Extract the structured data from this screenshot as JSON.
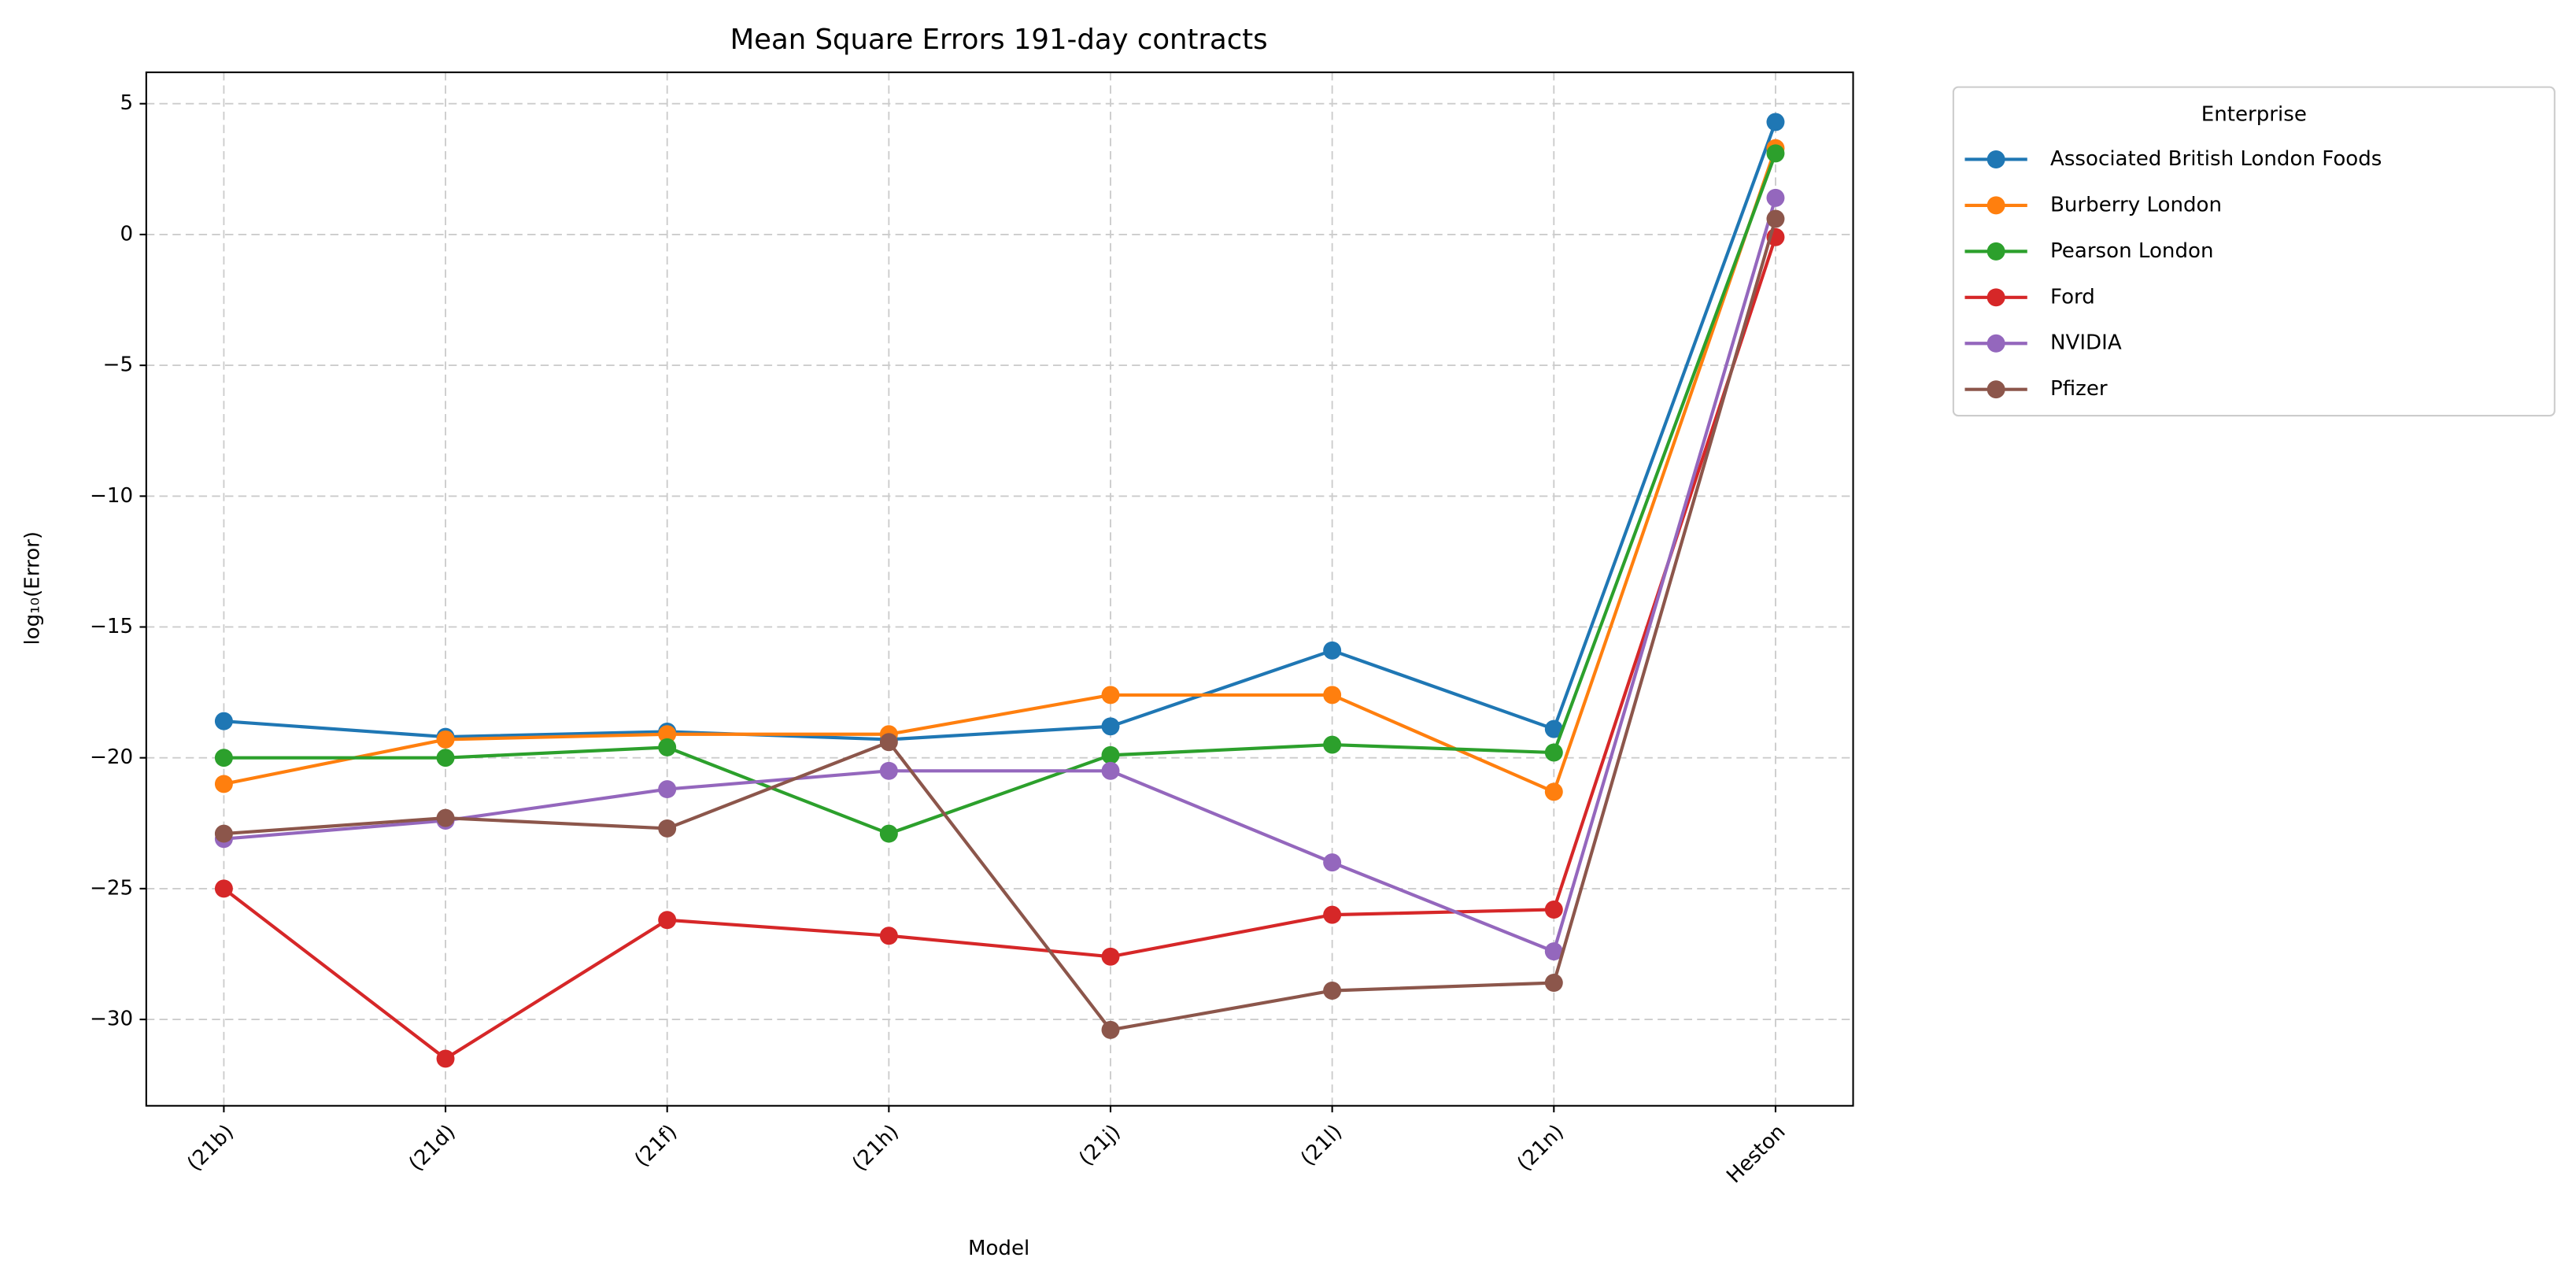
{
  "chart_data": {
    "type": "line",
    "title": "Mean Square Errors 191-day contracts",
    "x_label": "Model",
    "y_label": "log₁₀(Error)",
    "categories": [
      "(21b)",
      "(21d)",
      "(21f)",
      "(21h)",
      "(21j)",
      "(21l)",
      "(21n)",
      "Heston"
    ],
    "series": [
      {
        "name": "Associated British London Foods",
        "color": "#1f77b4",
        "values": [
          -18.6,
          -19.2,
          -19.0,
          -19.3,
          -18.8,
          -15.9,
          -18.9,
          4.3
        ]
      },
      {
        "name": "Burberry London",
        "color": "#ff7f0e",
        "values": [
          -21.0,
          -19.3,
          -19.1,
          -19.1,
          -17.6,
          -17.6,
          -21.3,
          3.3
        ]
      },
      {
        "name": "Pearson London",
        "color": "#2ca02c",
        "values": [
          -20.0,
          -20.0,
          -19.6,
          -22.9,
          -19.9,
          -19.5,
          -19.8,
          3.1
        ]
      },
      {
        "name": "Ford",
        "color": "#d62728",
        "values": [
          -25.0,
          -31.5,
          -26.2,
          -26.8,
          -27.6,
          -26.0,
          -25.8,
          -0.1
        ]
      },
      {
        "name": "NVIDIA",
        "color": "#9467bd",
        "values": [
          -23.1,
          -22.4,
          -21.2,
          -20.5,
          -20.5,
          -24.0,
          -27.4,
          1.4
        ]
      },
      {
        "name": "Pfizer",
        "color": "#8c564b",
        "values": [
          -22.9,
          -22.3,
          -22.7,
          -19.4,
          -30.4,
          -28.9,
          -28.6,
          0.6
        ]
      }
    ],
    "ylim": [
      -33.3,
      6.2
    ],
    "yticks": [
      {
        "value": -30,
        "label": "−30"
      },
      {
        "value": -25,
        "label": "−25"
      },
      {
        "value": -20,
        "label": "−20"
      },
      {
        "value": -15,
        "label": "−15"
      },
      {
        "value": -10,
        "label": "−10"
      },
      {
        "value": -5,
        "label": "−5"
      },
      0,
      5
    ],
    "grid": true,
    "legend_title": "Enterprise",
    "legend_position": "outside upper right"
  }
}
